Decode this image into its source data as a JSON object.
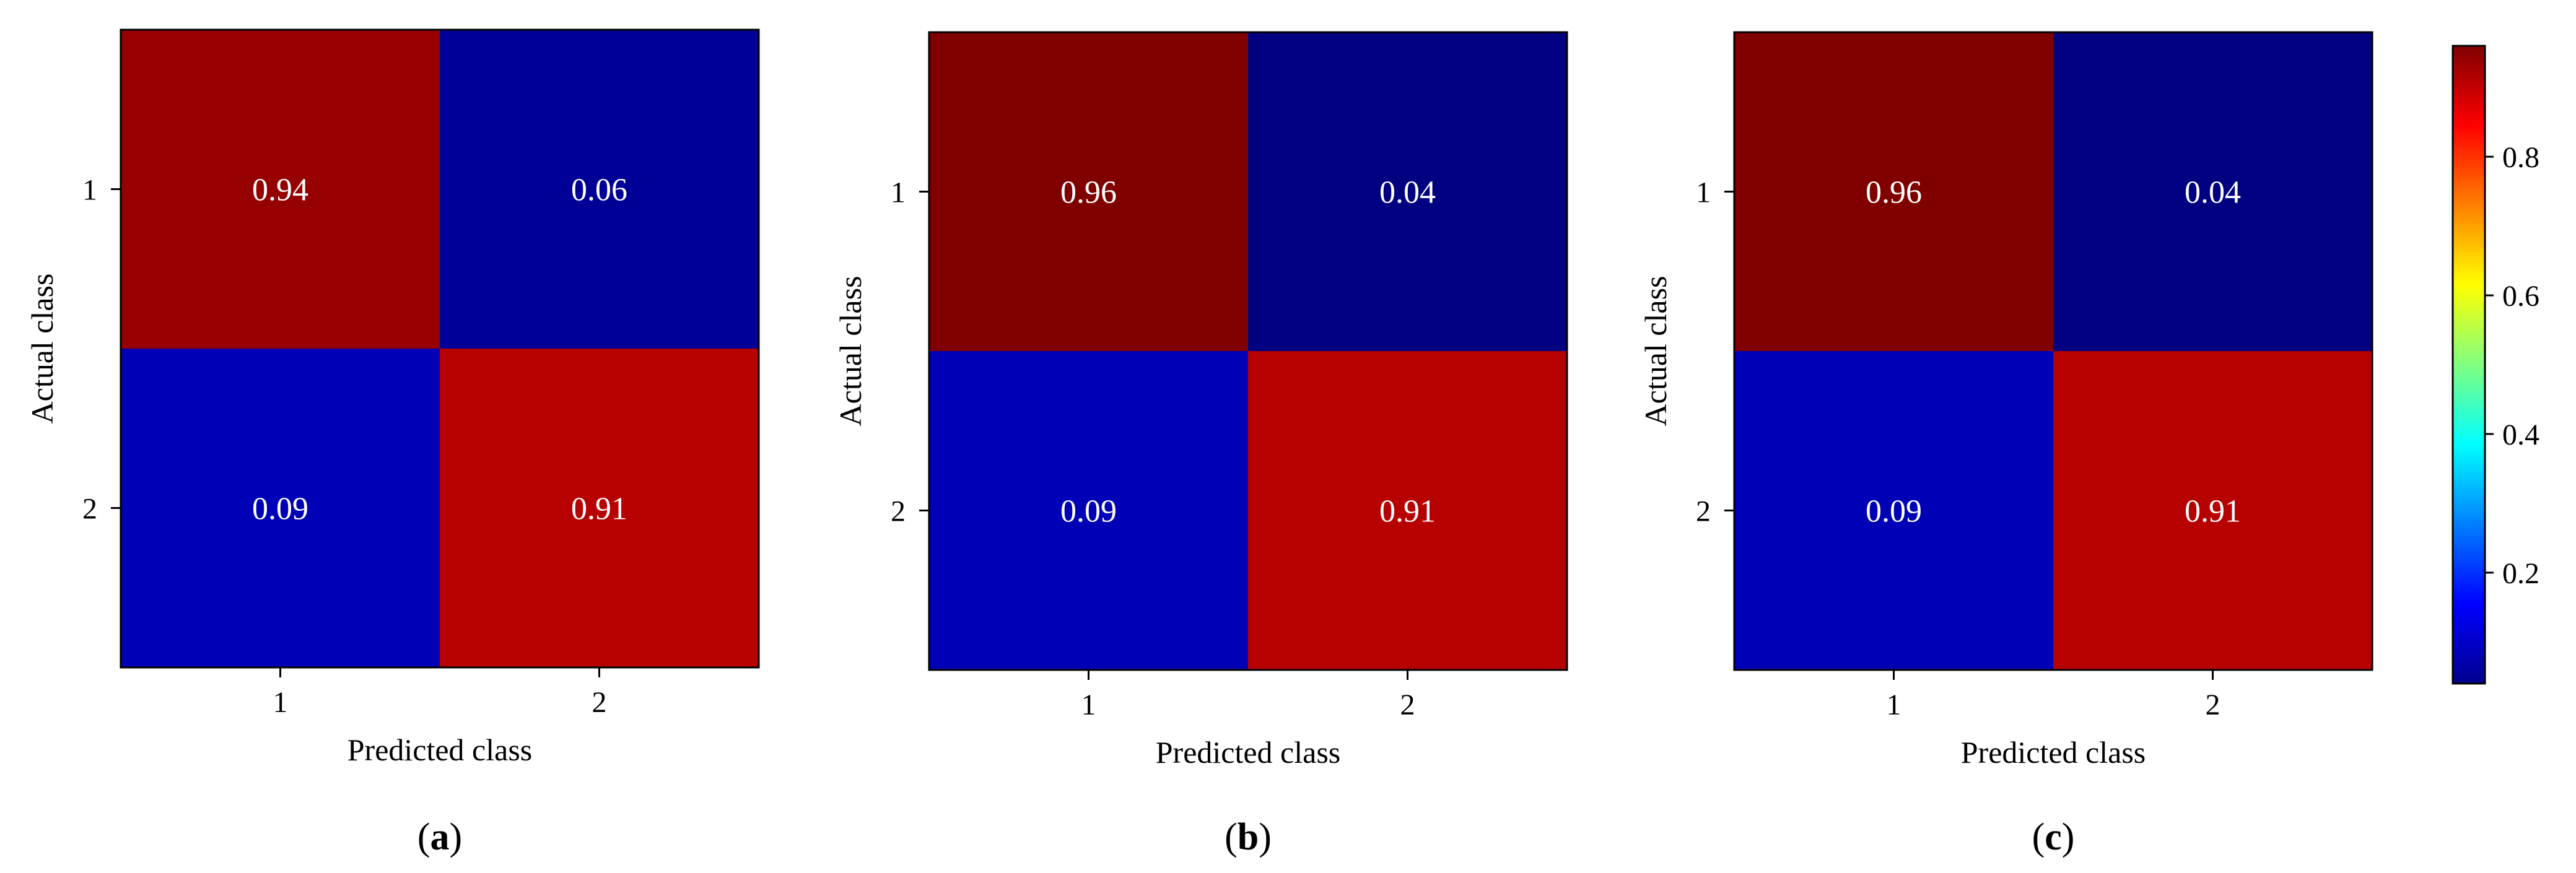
{
  "chart_data": [
    {
      "type": "heatmap",
      "panel_label": "(a)",
      "x_categories": [
        "1",
        "2"
      ],
      "y_categories": [
        "1",
        "2"
      ],
      "xlabel": "Predicted class",
      "ylabel": "Actual class",
      "values": [
        [
          0.94,
          0.06
        ],
        [
          0.09,
          0.91
        ]
      ],
      "value_labels": [
        [
          "0.94",
          "0.06"
        ],
        [
          "0.09",
          "0.91"
        ]
      ]
    },
    {
      "type": "heatmap",
      "panel_label": "(b)",
      "x_categories": [
        "1",
        "2"
      ],
      "y_categories": [
        "1",
        "2"
      ],
      "xlabel": "Predicted class",
      "ylabel": "Actual class",
      "values": [
        [
          0.96,
          0.04
        ],
        [
          0.09,
          0.91
        ]
      ],
      "value_labels": [
        [
          "0.96",
          "0.04"
        ],
        [
          "0.09",
          "0.91"
        ]
      ]
    },
    {
      "type": "heatmap",
      "panel_label": "(c)",
      "x_categories": [
        "1",
        "2"
      ],
      "y_categories": [
        "1",
        "2"
      ],
      "xlabel": "Predicted class",
      "ylabel": "Actual class",
      "values": [
        [
          0.96,
          0.04
        ],
        [
          0.09,
          0.91
        ]
      ],
      "value_labels": [
        [
          "0.96",
          "0.04"
        ],
        [
          "0.09",
          "0.91"
        ]
      ]
    }
  ],
  "colorbar": {
    "colormap": "jet",
    "range": [
      0.04,
      0.96
    ],
    "ticks": [
      0.2,
      0.4,
      0.6,
      0.8
    ],
    "tick_labels": [
      "0.2",
      "0.4",
      "0.6",
      "0.8"
    ]
  }
}
